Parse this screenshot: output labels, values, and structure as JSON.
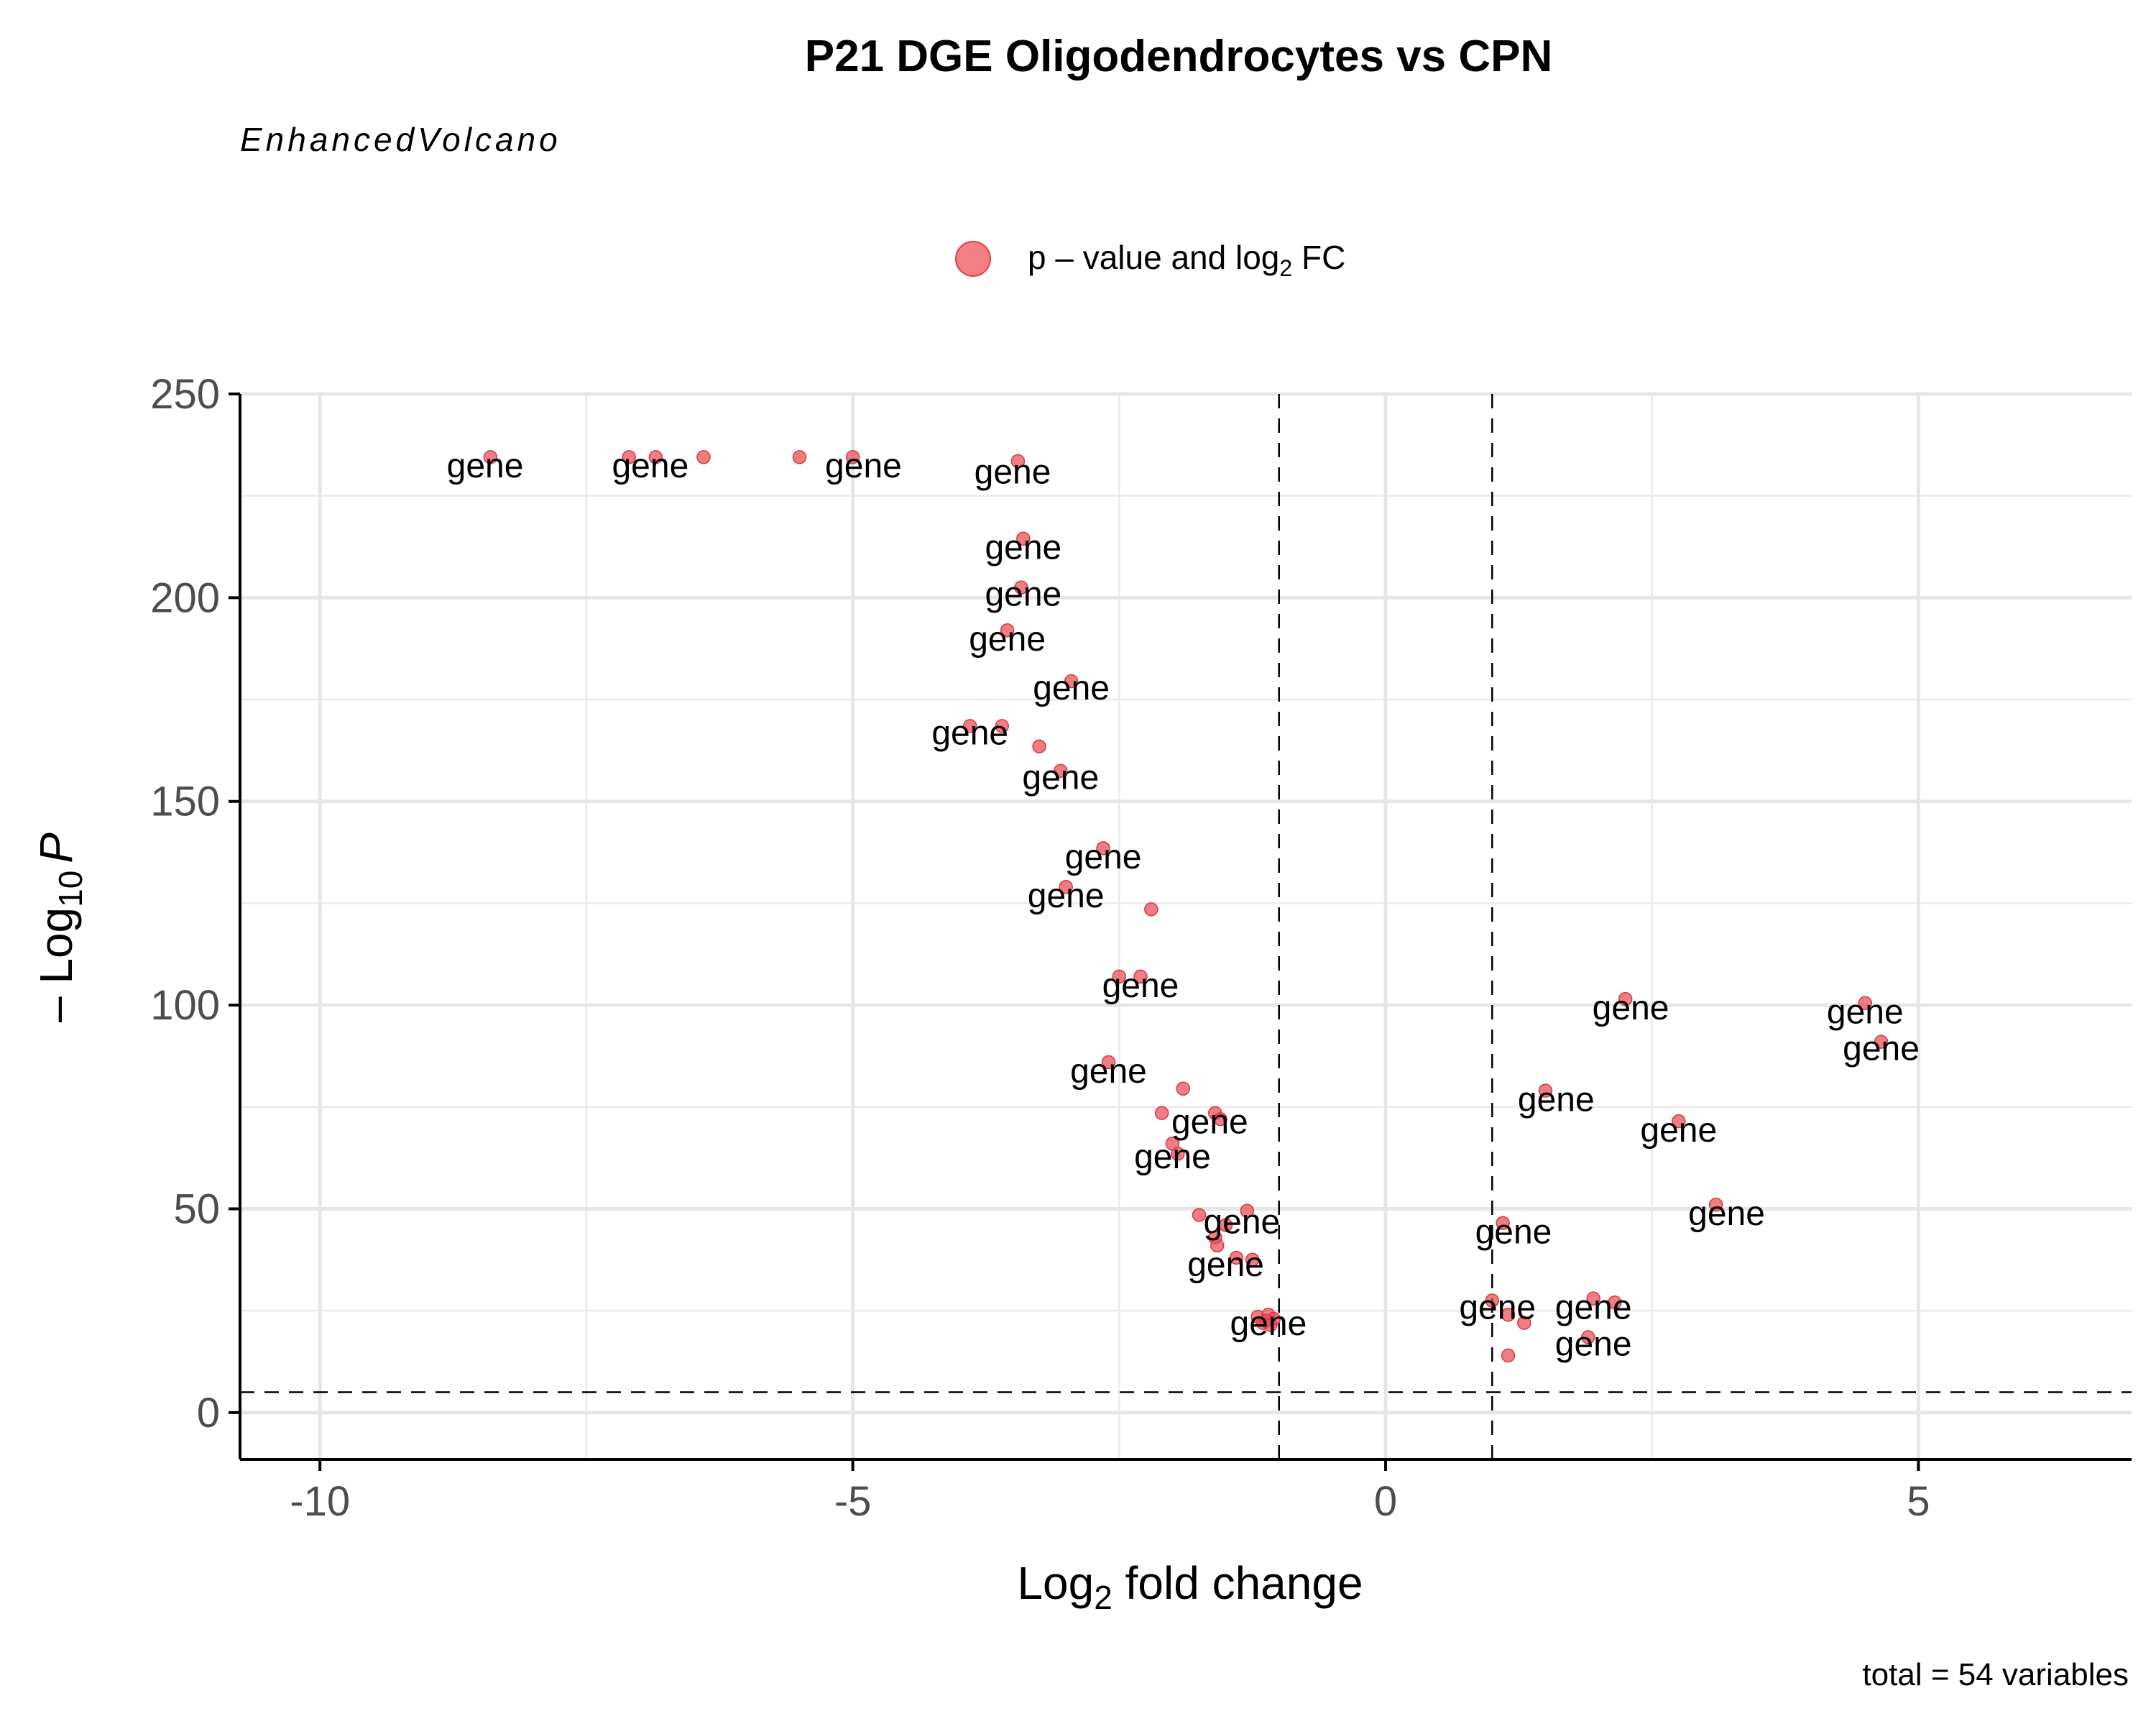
{
  "chart_data": {
    "type": "scatter",
    "title": "P21 DGE Oligodendrocytes vs CPN",
    "subtitle": "EnhancedVolcano",
    "caption": "total = 54 variables",
    "xlabel_main": "Log",
    "xlabel_sub": "2",
    "xlabel_rest": " fold change",
    "ylabel_prefix": "– Log",
    "ylabel_sub": "10",
    "ylabel_var": "P",
    "legend": {
      "placement": "top-center",
      "label_main": "p – value and log",
      "label_sub": "2",
      "label_rest": " FC",
      "color": "#f0545c"
    },
    "point_color": "#ea4a55",
    "xlim": [
      -10.75,
      7
    ],
    "ylim": [
      -11.5,
      250
    ],
    "x_ticks": [
      -10,
      -5,
      0,
      5
    ],
    "x_tick_labels": [
      "-10",
      "-5",
      "0",
      "5"
    ],
    "y_ticks": [
      0,
      50,
      100,
      150,
      200,
      250
    ],
    "y_tick_labels": [
      "0",
      "50",
      "100",
      "150",
      "200",
      "250"
    ],
    "cutoffs": {
      "log2fc": [
        -1,
        1
      ],
      "neg_log10_p": 5
    },
    "grid": true,
    "points": [
      {
        "x": -8.4,
        "y": 234.5
      },
      {
        "x": -7.1,
        "y": 234.5
      },
      {
        "x": -6.85,
        "y": 234.5
      },
      {
        "x": -6.4,
        "y": 234.5
      },
      {
        "x": -5.5,
        "y": 234.5
      },
      {
        "x": -5.0,
        "y": 234.5
      },
      {
        "x": -3.45,
        "y": 233.5
      },
      {
        "x": -3.4,
        "y": 214.5
      },
      {
        "x": -3.42,
        "y": 202.5
      },
      {
        "x": -3.55,
        "y": 192
      },
      {
        "x": -2.95,
        "y": 179.5
      },
      {
        "x": -3.9,
        "y": 168.5
      },
      {
        "x": -3.6,
        "y": 168.5
      },
      {
        "x": -3.25,
        "y": 163.5
      },
      {
        "x": -3.05,
        "y": 157.5
      },
      {
        "x": -2.65,
        "y": 138.5
      },
      {
        "x": -3.0,
        "y": 129
      },
      {
        "x": -2.2,
        "y": 123.5
      },
      {
        "x": -2.5,
        "y": 107
      },
      {
        "x": -2.3,
        "y": 107
      },
      {
        "x": -2.6,
        "y": 86
      },
      {
        "x": -1.9,
        "y": 79.5
      },
      {
        "x": -2.1,
        "y": 73.5
      },
      {
        "x": -1.6,
        "y": 73.5
      },
      {
        "x": -1.55,
        "y": 72
      },
      {
        "x": -2.0,
        "y": 66
      },
      {
        "x": -1.95,
        "y": 63.5
      },
      {
        "x": -1.75,
        "y": 48.5
      },
      {
        "x": -1.3,
        "y": 49.5
      },
      {
        "x": -1.5,
        "y": 46
      },
      {
        "x": -1.6,
        "y": 43
      },
      {
        "x": -1.58,
        "y": 41
      },
      {
        "x": -1.4,
        "y": 38
      },
      {
        "x": -1.25,
        "y": 37.5
      },
      {
        "x": -1.2,
        "y": 23.5
      },
      {
        "x": -1.1,
        "y": 24
      },
      {
        "x": -1.05,
        "y": 23
      },
      {
        "x": -1.15,
        "y": 22
      },
      {
        "x": 2.25,
        "y": 101.5
      },
      {
        "x": 4.5,
        "y": 100.5
      },
      {
        "x": 4.65,
        "y": 91
      },
      {
        "x": 1.5,
        "y": 79
      },
      {
        "x": 2.75,
        "y": 71.5
      },
      {
        "x": 3.1,
        "y": 51
      },
      {
        "x": 1.1,
        "y": 46.5
      },
      {
        "x": 1.0,
        "y": 27.5
      },
      {
        "x": 1.15,
        "y": 24
      },
      {
        "x": 1.3,
        "y": 22
      },
      {
        "x": 1.95,
        "y": 28
      },
      {
        "x": 2.15,
        "y": 27
      },
      {
        "x": 1.9,
        "y": 18.5
      },
      {
        "x": 1.15,
        "y": 14
      },
      {
        "x": -1.12,
        "y": 22.5
      },
      {
        "x": -1.08,
        "y": 21.5
      }
    ],
    "labels": [
      {
        "text": "gene",
        "x": -8.45,
        "y": 232.5
      },
      {
        "text": "gene",
        "x": -6.9,
        "y": 232.5
      },
      {
        "text": "gene",
        "x": -4.9,
        "y": 232.5
      },
      {
        "text": "gene",
        "x": -3.5,
        "y": 231
      },
      {
        "text": "gene",
        "x": -3.4,
        "y": 212.5
      },
      {
        "text": "gene",
        "x": -3.4,
        "y": 201
      },
      {
        "text": "gene",
        "x": -3.55,
        "y": 190
      },
      {
        "text": "gene",
        "x": -2.95,
        "y": 178
      },
      {
        "text": "gene",
        "x": -3.9,
        "y": 167
      },
      {
        "text": "gene",
        "x": -3.05,
        "y": 156
      },
      {
        "text": "gene",
        "x": -2.65,
        "y": 136.5
      },
      {
        "text": "gene",
        "x": -3.0,
        "y": 127
      },
      {
        "text": "gene",
        "x": -2.3,
        "y": 105
      },
      {
        "text": "gene",
        "x": -2.6,
        "y": 84
      },
      {
        "text": "gene",
        "x": -1.65,
        "y": 71.5
      },
      {
        "text": "gene",
        "x": -2.0,
        "y": 63
      },
      {
        "text": "gene",
        "x": -1.35,
        "y": 47
      },
      {
        "text": "gene",
        "x": -1.5,
        "y": 36.5
      },
      {
        "text": "gene",
        "x": -1.1,
        "y": 22
      },
      {
        "text": "gene",
        "x": 2.3,
        "y": 99.5
      },
      {
        "text": "gene",
        "x": 4.5,
        "y": 98.5
      },
      {
        "text": "gene",
        "x": 4.65,
        "y": 89.5
      },
      {
        "text": "gene",
        "x": 1.6,
        "y": 77
      },
      {
        "text": "gene",
        "x": 2.75,
        "y": 69.5
      },
      {
        "text": "gene",
        "x": 3.2,
        "y": 49
      },
      {
        "text": "gene",
        "x": 1.2,
        "y": 44.5
      },
      {
        "text": "gene",
        "x": 1.05,
        "y": 26
      },
      {
        "text": "gene",
        "x": 1.95,
        "y": 26
      },
      {
        "text": "gene",
        "x": 1.95,
        "y": 17
      }
    ]
  }
}
